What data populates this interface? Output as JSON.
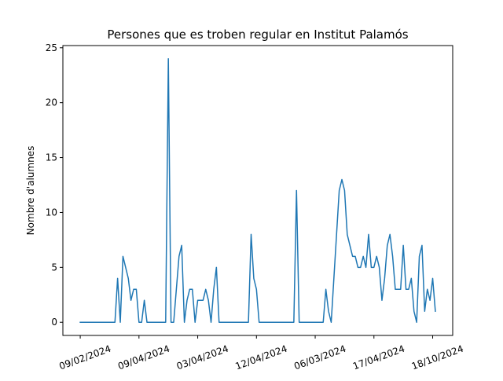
{
  "chart_data": {
    "type": "line",
    "title": "Persones que es troben regular en Institut Palamós",
    "xlabel": "",
    "ylabel": "Nombre d'alumnes",
    "ylim": [
      -1.2,
      25.2
    ],
    "grid": false,
    "x_tick_labels": [
      "09/02/2024",
      "09/04/2024",
      "03/04/2024",
      "12/04/2024",
      "06/03/2024",
      "17/04/2024",
      "18/10/2024"
    ],
    "yticks": [
      0,
      5,
      10,
      15,
      20,
      25
    ],
    "series": [
      {
        "color": "#1f77b4",
        "values": [
          0,
          0,
          0,
          0,
          0,
          0,
          0,
          0,
          0,
          0,
          0,
          0,
          0,
          0,
          4,
          0,
          6,
          5,
          4,
          2,
          3,
          3,
          0,
          0,
          2,
          0,
          0,
          0,
          0,
          0,
          0,
          0,
          0,
          24,
          0,
          0,
          3,
          6,
          7,
          0,
          2,
          3,
          3,
          0,
          2,
          2,
          2,
          3,
          2,
          0,
          3,
          5,
          0,
          0,
          0,
          0,
          0,
          0,
          0,
          0,
          0,
          0,
          0,
          0,
          8,
          4,
          3,
          0,
          0,
          0,
          0,
          0,
          0,
          0,
          0,
          0,
          0,
          0,
          0,
          0,
          0,
          12,
          0,
          0,
          0,
          0,
          0,
          0,
          0,
          0,
          0,
          0,
          3,
          1,
          0,
          4,
          8,
          12,
          13,
          12,
          8,
          7,
          6,
          6,
          5,
          5,
          6,
          5,
          8,
          5,
          5,
          6,
          5,
          2,
          4,
          7,
          8,
          6,
          3,
          3,
          3,
          7,
          3,
          3,
          4,
          1,
          0,
          6,
          7,
          1,
          3,
          2,
          4,
          1
        ]
      }
    ]
  }
}
